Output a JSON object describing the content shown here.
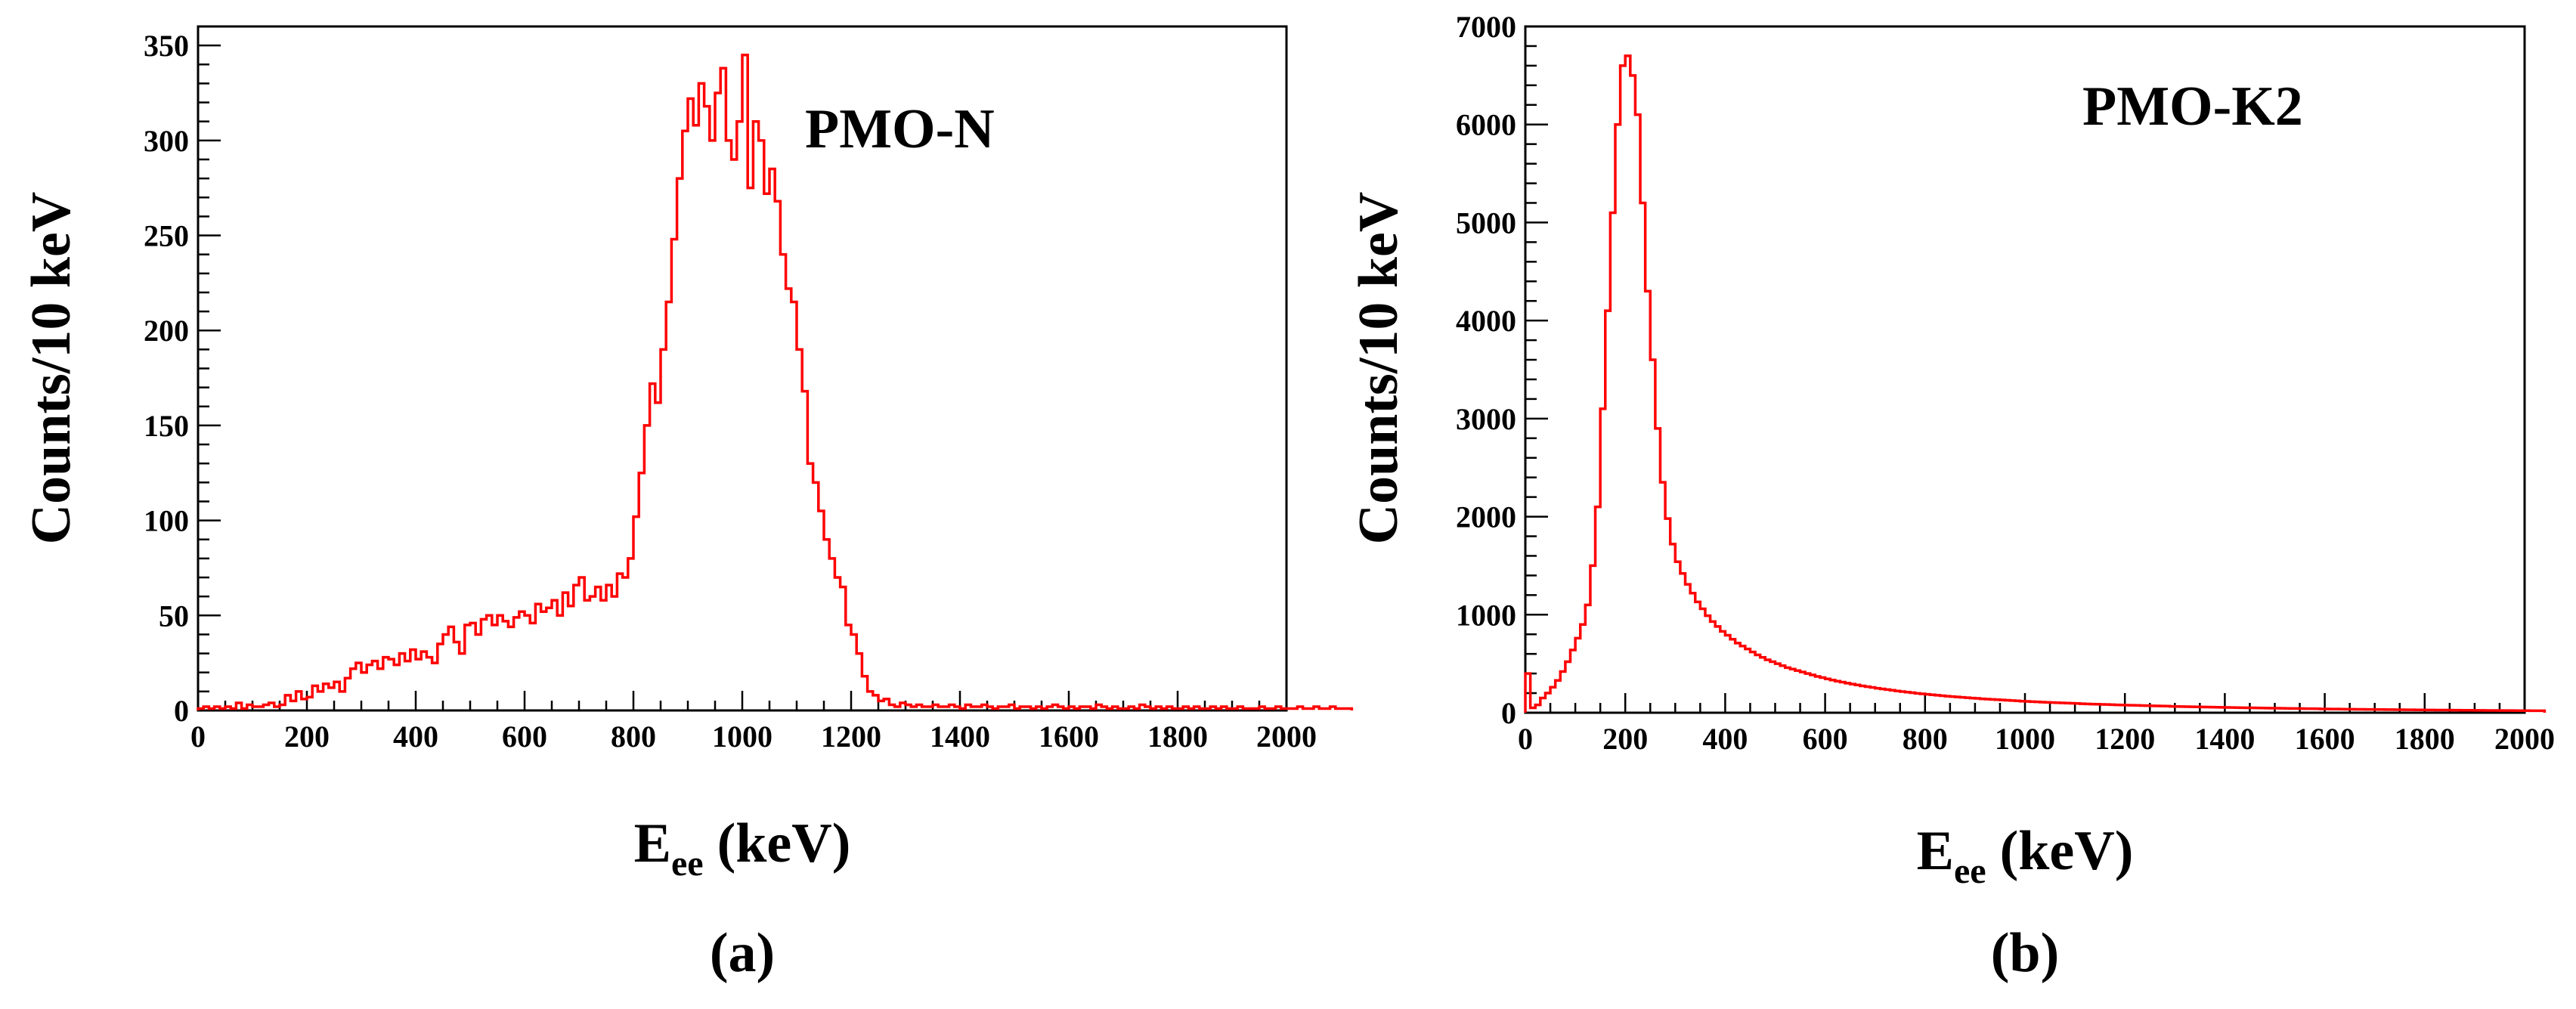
{
  "chart_data": [
    {
      "type": "histogram",
      "panel_label": "(a)",
      "title": "PMO-N",
      "ylabel": "Counts/10 keV",
      "xlabel_main": "E",
      "xlabel_sub": "ee",
      "xlabel_unit": "(keV)",
      "xlim": [
        0,
        2000
      ],
      "ylim": [
        0,
        360
      ],
      "x_ticks": [
        0,
        200,
        400,
        600,
        800,
        1000,
        1200,
        1400,
        1600,
        1800,
        2000
      ],
      "y_ticks": [
        0,
        50,
        100,
        150,
        200,
        250,
        300,
        350
      ],
      "bin_width": 10,
      "color": "#ff0000",
      "values": [
        1,
        2,
        1,
        2,
        1,
        2,
        1,
        4,
        1,
        3,
        2,
        2,
        3,
        4,
        2,
        3,
        8,
        5,
        10,
        6,
        7,
        13,
        10,
        14,
        12,
        15,
        10,
        17,
        22,
        25,
        20,
        24,
        26,
        22,
        28,
        27,
        24,
        30,
        26,
        32,
        27,
        31,
        28,
        25,
        35,
        40,
        44,
        36,
        30,
        45,
        46,
        40,
        48,
        50,
        45,
        50,
        47,
        44,
        49,
        52,
        50,
        46,
        56,
        52,
        54,
        58,
        50,
        62,
        55,
        66,
        70,
        58,
        60,
        65,
        58,
        66,
        60,
        72,
        70,
        80,
        102,
        125,
        150,
        172,
        162,
        190,
        215,
        248,
        280,
        305,
        322,
        308,
        330,
        318,
        300,
        325,
        338,
        300,
        290,
        310,
        345,
        275,
        310,
        300,
        272,
        285,
        268,
        240,
        222,
        215,
        190,
        168,
        130,
        120,
        105,
        90,
        80,
        70,
        65,
        45,
        40,
        30,
        18,
        10,
        8,
        5,
        6,
        3,
        2,
        4,
        3,
        2,
        3,
        2,
        2,
        3,
        2,
        2,
        3,
        2,
        1,
        3,
        2,
        2,
        3,
        2,
        1,
        2,
        2,
        3,
        1,
        2,
        2,
        1,
        2,
        1,
        2,
        3,
        2,
        1,
        2,
        1,
        2,
        2,
        1,
        3,
        2,
        1,
        2,
        1,
        1,
        2,
        1,
        3,
        2,
        1,
        2,
        1,
        2,
        1,
        1,
        2,
        1,
        2,
        1,
        1,
        2,
        1,
        2,
        1,
        1,
        2,
        1,
        1,
        1,
        2,
        1,
        1,
        2,
        1,
        1,
        1,
        2,
        1,
        1,
        2,
        1,
        1,
        2,
        1,
        1,
        1
      ]
    },
    {
      "type": "histogram",
      "panel_label": "(b)",
      "title": "PMO-K2",
      "ylabel": "Counts/10 keV",
      "xlabel_main": "E",
      "xlabel_sub": "ee",
      "xlabel_unit": "(keV)",
      "xlim": [
        0,
        2000
      ],
      "ylim": [
        0,
        7000
      ],
      "x_ticks": [
        0,
        200,
        400,
        600,
        800,
        1000,
        1200,
        1400,
        1600,
        1800,
        2000
      ],
      "y_ticks": [
        0,
        1000,
        2000,
        3000,
        4000,
        5000,
        6000,
        7000
      ],
      "bin_width": 10,
      "color": "#ff0000",
      "values": [
        400,
        50,
        80,
        150,
        200,
        260,
        330,
        420,
        520,
        640,
        760,
        900,
        1100,
        1500,
        2100,
        3100,
        4100,
        5100,
        6000,
        6600,
        6700,
        6500,
        6100,
        5200,
        4300,
        3600,
        2900,
        2350,
        1980,
        1720,
        1540,
        1420,
        1310,
        1220,
        1130,
        1060,
        990,
        930,
        880,
        830,
        790,
        750,
        710,
        680,
        650,
        620,
        590,
        565,
        540,
        520,
        500,
        480,
        460,
        445,
        430,
        415,
        400,
        385,
        370,
        358,
        345,
        333,
        322,
        312,
        302,
        292,
        283,
        274,
        266,
        258,
        250,
        243,
        236,
        229,
        222,
        216,
        210,
        204,
        198,
        193,
        188,
        183,
        178,
        173,
        169,
        165,
        161,
        157,
        153,
        149,
        146,
        142,
        139,
        136,
        133,
        130,
        127,
        124,
        121,
        118,
        116,
        113,
        111,
        108,
        106,
        104,
        102,
        100,
        98,
        96,
        94,
        92,
        90,
        88,
        87,
        85,
        84,
        82,
        80,
        79,
        77,
        76,
        75,
        73,
        72,
        70,
        69,
        68,
        67,
        65,
        64,
        63,
        62,
        61,
        60,
        59,
        58,
        57,
        56,
        55,
        54,
        53,
        52,
        51,
        50,
        50,
        49,
        48,
        47,
        46,
        46,
        45,
        44,
        43,
        43,
        42,
        41,
        41,
        40,
        39,
        39,
        38,
        38,
        37,
        36,
        36,
        35,
        35,
        34,
        34,
        33,
        33,
        32,
        32,
        31,
        31,
        30,
        30,
        29,
        29,
        28,
        28,
        27,
        27,
        27,
        26,
        26,
        25,
        25,
        25,
        24,
        24,
        23,
        23,
        23,
        22,
        22,
        22,
        21,
        21,
        21,
        20,
        20,
        20
      ]
    }
  ]
}
